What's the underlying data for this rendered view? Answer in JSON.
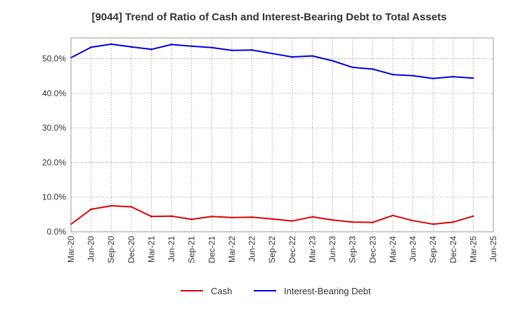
{
  "chart_data": {
    "type": "line",
    "title": "[9044]  Trend of Ratio of Cash and Interest-Bearing Debt to Total Assets",
    "xlabel": "",
    "ylabel": "",
    "ylim": [
      0,
      56
    ],
    "grid": true,
    "legend_position": "bottom",
    "y_ticks": [
      "0.0%",
      "10.0%",
      "20.0%",
      "30.0%",
      "40.0%",
      "50.0%"
    ],
    "x_ticks": [
      "Mar-20",
      "Jun-20",
      "Sep-20",
      "Dec-20",
      "Mar-21",
      "Jun-21",
      "Sep-21",
      "Dec-21",
      "Mar-22",
      "Jun-22",
      "Sep-22",
      "Dec-22",
      "Mar-23",
      "Jun-23",
      "Sep-23",
      "Dec-23",
      "Mar-24",
      "Jun-24",
      "Sep-24",
      "Dec-24",
      "Mar-25",
      "Jun-25"
    ],
    "x": [
      "Mar-20",
      "Jun-20",
      "Sep-20",
      "Dec-20",
      "Mar-21",
      "Jun-21",
      "Sep-21",
      "Dec-21",
      "Mar-22",
      "Jun-22",
      "Sep-22",
      "Dec-22",
      "Mar-23",
      "Jun-23",
      "Sep-23",
      "Dec-23",
      "Mar-24",
      "Jun-24",
      "Sep-24",
      "Dec-24",
      "Mar-25"
    ],
    "series": [
      {
        "name": "Cash",
        "color": "#e00000",
        "values": [
          2.2,
          6.5,
          7.5,
          7.2,
          4.4,
          4.5,
          3.6,
          4.4,
          4.1,
          4.2,
          3.7,
          3.1,
          4.3,
          3.4,
          2.8,
          2.7,
          4.7,
          3.2,
          2.2,
          2.8,
          4.5
        ]
      },
      {
        "name": "Interest-Bearing Debt",
        "color": "#0000dd",
        "values": [
          50.3,
          53.3,
          54.2,
          53.4,
          52.7,
          54.1,
          53.6,
          53.2,
          52.4,
          52.5,
          51.5,
          50.5,
          50.8,
          49.4,
          47.5,
          47.0,
          45.4,
          45.1,
          44.3,
          44.8,
          44.4
        ]
      }
    ]
  }
}
